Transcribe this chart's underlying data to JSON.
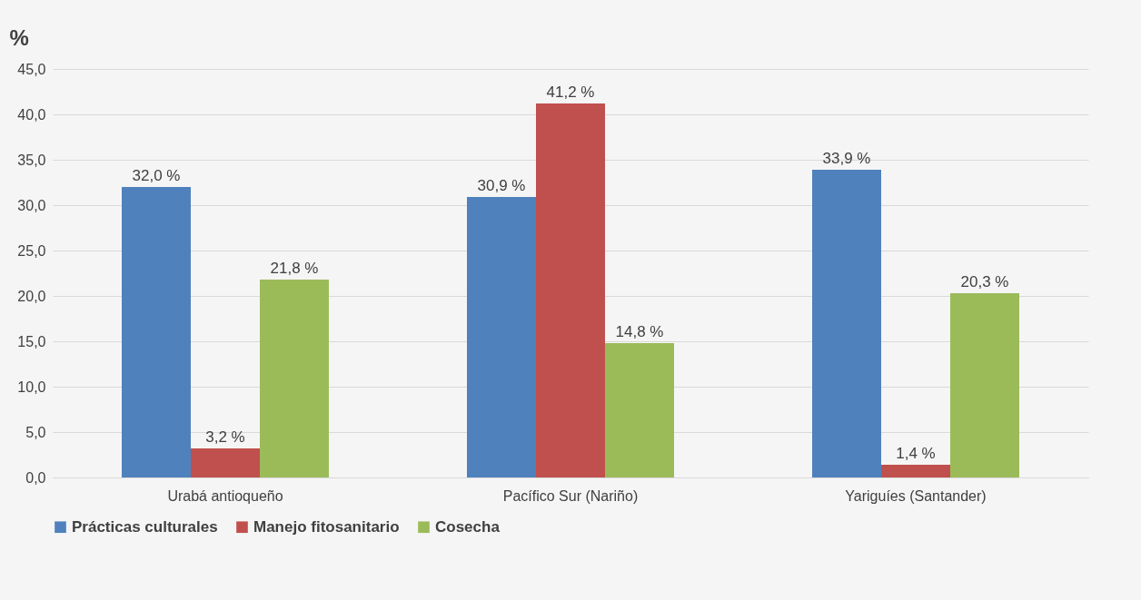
{
  "chart_data": {
    "type": "bar",
    "ylabel": "%",
    "categories": [
      "Urabá antioqueño",
      "Pacífico Sur (Nariño)",
      "Yariguíes (Santander)"
    ],
    "series": [
      {
        "name": "Prácticas culturales",
        "color": "#4f81bd",
        "values": [
          32.0,
          30.9,
          33.9
        ],
        "value_labels": [
          "32,0 %",
          "30,9 %",
          "33,9 %"
        ]
      },
      {
        "name": "Manejo fitosanitario",
        "color": "#c0504d",
        "values": [
          3.2,
          41.2,
          1.4
        ],
        "value_labels": [
          "3,2 %",
          "41,2 %",
          "1,4 %"
        ]
      },
      {
        "name": "Cosecha",
        "color": "#9bbb59",
        "values": [
          21.8,
          14.8,
          20.3
        ],
        "value_labels": [
          "21,8 %",
          "14,8 %",
          "20,3 %"
        ]
      }
    ],
    "ylim": [
      0,
      45
    ],
    "yticks": [
      {
        "value": 0,
        "label": "0,0"
      },
      {
        "value": 5,
        "label": "5,0"
      },
      {
        "value": 10,
        "label": "10,0"
      },
      {
        "value": 15,
        "label": "15,0"
      },
      {
        "value": 20,
        "label": "20,0"
      },
      {
        "value": 25,
        "label": "25,0"
      },
      {
        "value": 30,
        "label": "30,0"
      },
      {
        "value": 35,
        "label": "35,0"
      },
      {
        "value": 40,
        "label": "40,0"
      },
      {
        "value": 45,
        "label": "45,0"
      }
    ],
    "grid": "y",
    "legend": "bottom"
  }
}
